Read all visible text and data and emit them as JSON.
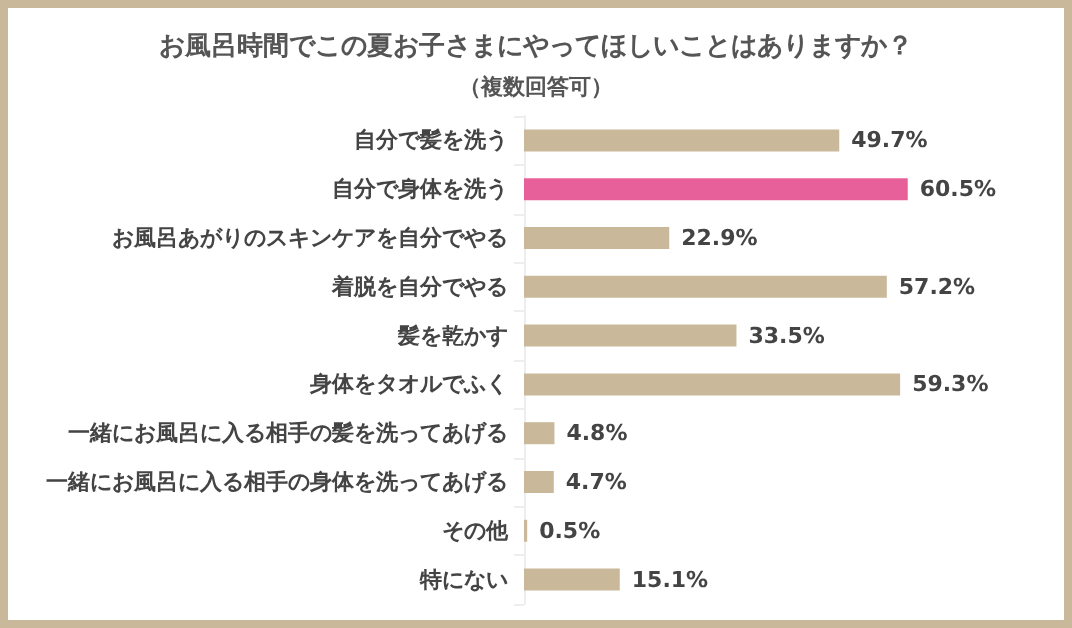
{
  "chart_data": {
    "type": "bar",
    "orientation": "horizontal",
    "title": "お風呂時間でこの夏お子さまにやってほしいことはありますか？",
    "subtitle": "（複数回答可）",
    "categories": [
      "自分で髪を洗う",
      "自分で身体を洗う",
      "お風呂あがりのスキンケアを自分でやる",
      "着脱を自分でやる",
      "髪を乾かす",
      "身体をタオルでふく",
      "一緒にお風呂に入る相手の髪を洗ってあげる",
      "一緒にお風呂に入る相手の身体を洗ってあげる",
      "その他",
      "特にない"
    ],
    "values": [
      49.7,
      60.5,
      22.9,
      57.2,
      33.5,
      59.3,
      4.8,
      4.7,
      0.5,
      15.1
    ],
    "value_labels": [
      "49.7%",
      "60.5%",
      "22.9%",
      "57.2%",
      "33.5%",
      "59.3%",
      "4.8%",
      "4.7%",
      "0.5%",
      "15.1%"
    ],
    "colors": [
      "#c9b99a",
      "#e8609a",
      "#c9b99a",
      "#c9b99a",
      "#c9b99a",
      "#c9b99a",
      "#c9b99a",
      "#c9b99a",
      "#c9b99a",
      "#c9b99a"
    ],
    "tick_labels": "y"
  }
}
